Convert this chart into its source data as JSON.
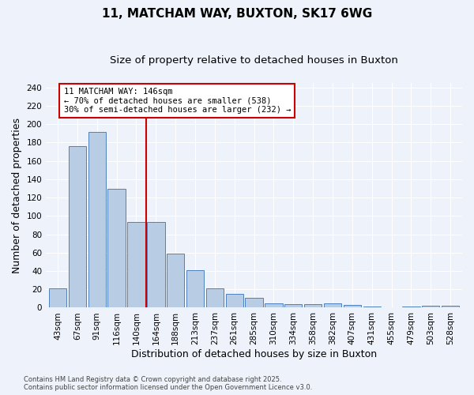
{
  "title": "11, MATCHAM WAY, BUXTON, SK17 6WG",
  "subtitle": "Size of property relative to detached houses in Buxton",
  "xlabel": "Distribution of detached houses by size in Buxton",
  "ylabel": "Number of detached properties",
  "categories": [
    "43sqm",
    "67sqm",
    "91sqm",
    "116sqm",
    "140sqm",
    "164sqm",
    "188sqm",
    "213sqm",
    "237sqm",
    "261sqm",
    "285sqm",
    "310sqm",
    "334sqm",
    "358sqm",
    "382sqm",
    "407sqm",
    "431sqm",
    "455sqm",
    "479sqm",
    "503sqm",
    "528sqm"
  ],
  "values": [
    21,
    176,
    192,
    130,
    93,
    93,
    59,
    41,
    21,
    15,
    11,
    5,
    4,
    4,
    5,
    3,
    1,
    0,
    1,
    2,
    2
  ],
  "bar_color": "#b8cce4",
  "bar_edge_color": "#4f81bd",
  "property_line_index": 4,
  "annotation_line1": "11 MATCHAM WAY: 146sqm",
  "annotation_line2": "← 70% of detached houses are smaller (538)",
  "annotation_line3": "30% of semi-detached houses are larger (232) →",
  "annotation_box_color": "#ffffff",
  "annotation_box_edge_color": "#cc0000",
  "red_line_color": "#cc0000",
  "ylim": [
    0,
    245
  ],
  "yticks": [
    0,
    20,
    40,
    60,
    80,
    100,
    120,
    140,
    160,
    180,
    200,
    220,
    240
  ],
  "title_fontsize": 11,
  "subtitle_fontsize": 9.5,
  "tick_fontsize": 7.5,
  "label_fontsize": 9,
  "footer_text": "Contains HM Land Registry data © Crown copyright and database right 2025.\nContains public sector information licensed under the Open Government Licence v3.0.",
  "background_color": "#eef2fa",
  "grid_color": "#ffffff"
}
